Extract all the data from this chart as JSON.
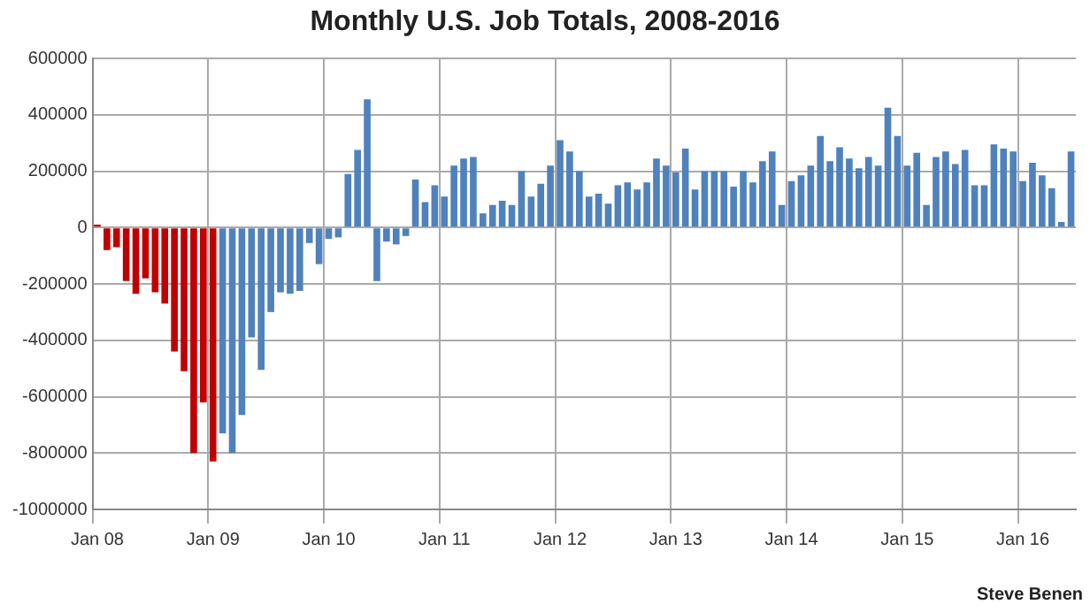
{
  "chart_data": {
    "type": "bar",
    "title": "Monthly U.S. Job Totals, 2008-2016",
    "categories": [
      "Jan 08",
      null,
      null,
      null,
      null,
      null,
      null,
      null,
      null,
      null,
      null,
      null,
      "Jan 09",
      null,
      null,
      null,
      null,
      null,
      null,
      null,
      null,
      null,
      null,
      null,
      "Jan 10",
      null,
      null,
      null,
      null,
      null,
      null,
      null,
      null,
      null,
      null,
      null,
      "Jan 11",
      null,
      null,
      null,
      null,
      null,
      null,
      null,
      null,
      null,
      null,
      null,
      "Jan 12",
      null,
      null,
      null,
      null,
      null,
      null,
      null,
      null,
      null,
      null,
      null,
      "Jan 13",
      null,
      null,
      null,
      null,
      null,
      null,
      null,
      null,
      null,
      null,
      null,
      "Jan 14",
      null,
      null,
      null,
      null,
      null,
      null,
      null,
      null,
      null,
      null,
      null,
      "Jan 15",
      null,
      null,
      null,
      null,
      null,
      null,
      null,
      null,
      null,
      null,
      null,
      "Jan 16",
      null,
      null,
      null,
      null,
      null
    ],
    "values": [
      10000,
      -80000,
      -70000,
      -190000,
      -235000,
      -180000,
      -230000,
      -270000,
      -440000,
      -510000,
      -800000,
      -620000,
      -830000,
      -730000,
      -800000,
      -665000,
      -390000,
      -505000,
      -300000,
      -230000,
      -235000,
      -225000,
      -55000,
      -130000,
      -40000,
      -35000,
      190000,
      275000,
      455000,
      -190000,
      -50000,
      -60000,
      -30000,
      170000,
      90000,
      150000,
      110000,
      220000,
      245000,
      250000,
      50000,
      80000,
      95000,
      80000,
      200000,
      110000,
      155000,
      220000,
      310000,
      270000,
      200000,
      110000,
      120000,
      85000,
      150000,
      160000,
      135000,
      160000,
      245000,
      220000,
      195000,
      280000,
      135000,
      200000,
      200000,
      200000,
      145000,
      200000,
      160000,
      235000,
      270000,
      80000,
      165000,
      185000,
      220000,
      325000,
      235000,
      285000,
      245000,
      210000,
      250000,
      220000,
      425000,
      325000,
      220000,
      265000,
      80000,
      250000,
      270000,
      225000,
      275000,
      150000,
      150000,
      295000,
      280000,
      270000,
      165000,
      230000,
      185000,
      140000,
      20000,
      270000
    ],
    "colors": [
      "#c00000",
      "#c00000",
      "#c00000",
      "#c00000",
      "#c00000",
      "#c00000",
      "#c00000",
      "#c00000",
      "#c00000",
      "#c00000",
      "#c00000",
      "#c00000",
      "#c00000",
      "#4f81bd",
      "#4f81bd",
      "#4f81bd",
      "#4f81bd",
      "#4f81bd",
      "#4f81bd",
      "#4f81bd",
      "#4f81bd",
      "#4f81bd",
      "#4f81bd",
      "#4f81bd",
      "#4f81bd",
      "#4f81bd",
      "#4f81bd",
      "#4f81bd",
      "#4f81bd",
      "#4f81bd",
      "#4f81bd",
      "#4f81bd",
      "#4f81bd",
      "#4f81bd",
      "#4f81bd",
      "#4f81bd",
      "#4f81bd",
      "#4f81bd",
      "#4f81bd",
      "#4f81bd",
      "#4f81bd",
      "#4f81bd",
      "#4f81bd",
      "#4f81bd",
      "#4f81bd",
      "#4f81bd",
      "#4f81bd",
      "#4f81bd",
      "#4f81bd",
      "#4f81bd",
      "#4f81bd",
      "#4f81bd",
      "#4f81bd",
      "#4f81bd",
      "#4f81bd",
      "#4f81bd",
      "#4f81bd",
      "#4f81bd",
      "#4f81bd",
      "#4f81bd",
      "#4f81bd",
      "#4f81bd",
      "#4f81bd",
      "#4f81bd",
      "#4f81bd",
      "#4f81bd",
      "#4f81bd",
      "#4f81bd",
      "#4f81bd",
      "#4f81bd",
      "#4f81bd",
      "#4f81bd",
      "#4f81bd",
      "#4f81bd",
      "#4f81bd",
      "#4f81bd",
      "#4f81bd",
      "#4f81bd",
      "#4f81bd",
      "#4f81bd",
      "#4f81bd",
      "#4f81bd",
      "#4f81bd",
      "#4f81bd",
      "#4f81bd",
      "#4f81bd",
      "#4f81bd",
      "#4f81bd",
      "#4f81bd",
      "#4f81bd",
      "#4f81bd",
      "#4f81bd",
      "#4f81bd",
      "#4f81bd",
      "#4f81bd",
      "#4f81bd",
      "#4f81bd",
      "#4f81bd",
      "#4f81bd",
      "#4f81bd",
      "#4f81bd",
      "#4f81bd"
    ],
    "ylim": [
      -1000000,
      600000
    ],
    "yticks": [
      -1000000,
      -800000,
      -600000,
      -400000,
      -200000,
      0,
      200000,
      400000,
      600000
    ],
    "grid": true,
    "legend": false,
    "annotations": [
      "Steve Benen"
    ]
  }
}
